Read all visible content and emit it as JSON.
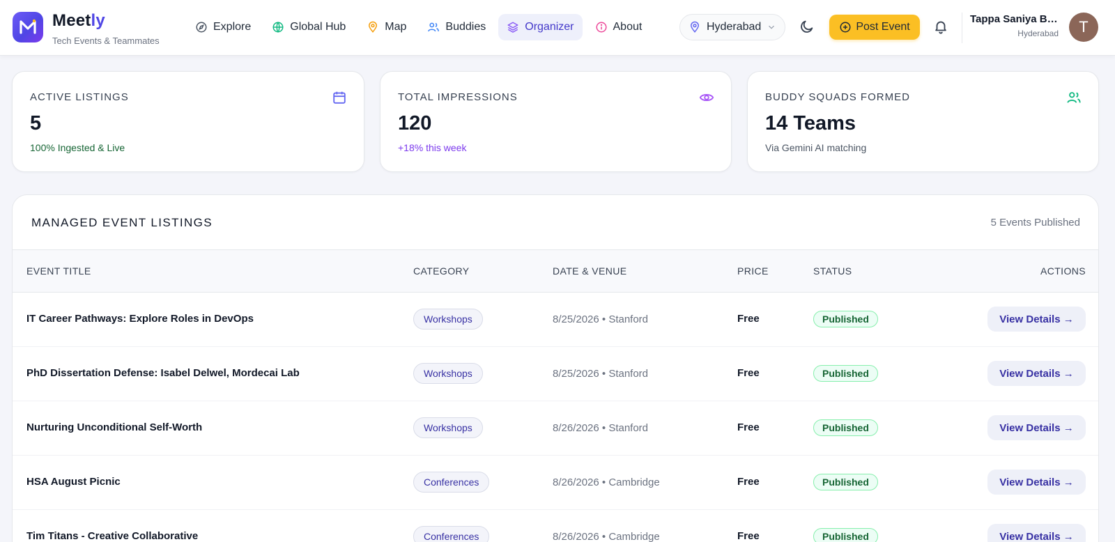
{
  "brand": {
    "name_main": "Meet",
    "name_accent": "ly",
    "tagline": "Tech Events & Teammates",
    "logo_letter": "M"
  },
  "nav": {
    "items": [
      {
        "label": "Explore",
        "icon": "compass-icon",
        "color": "#4b5563"
      },
      {
        "label": "Global Hub",
        "icon": "globe-icon",
        "color": "#10b981"
      },
      {
        "label": "Map",
        "icon": "map-pin-icon",
        "color": "#f59e0b"
      },
      {
        "label": "Buddies",
        "icon": "users-icon",
        "color": "#3b82f6"
      },
      {
        "label": "Organizer",
        "icon": "layers-icon",
        "color": "#8b5cf6",
        "active": true
      },
      {
        "label": "About",
        "icon": "info-icon",
        "color": "#ec4899"
      }
    ]
  },
  "location": {
    "city": "Hyderabad"
  },
  "header": {
    "post_event_label": "Post Event",
    "post_event_color": "#fbbf24"
  },
  "user": {
    "name": "Tappa Saniya Be...",
    "city": "Hyderabad",
    "avatar_initial": "T",
    "avatar_color": "#8b6658"
  },
  "stats": [
    {
      "label": "ACTIVE LISTINGS",
      "value": "5",
      "sub": "100% Ingested & Live",
      "icon": "calendar-icon",
      "icon_color": "#6366f1",
      "sub_color": "#166534"
    },
    {
      "label": "TOTAL IMPRESSIONS",
      "value": "120",
      "sub": "+18% this week",
      "icon": "eye-icon",
      "icon_color": "#a855f7",
      "sub_color": "#7c3aed"
    },
    {
      "label": "BUDDY SQUADS FORMED",
      "value": "14 Teams",
      "sub": "Via Gemini AI matching",
      "icon": "users-icon",
      "icon_color": "#10b981",
      "sub_color": "#4b5563"
    }
  ],
  "listings": {
    "title": "MANAGED EVENT LISTINGS",
    "count_label": "5 Events Published",
    "columns": [
      "EVENT TITLE",
      "CATEGORY",
      "DATE & VENUE",
      "PRICE",
      "STATUS",
      "ACTIONS"
    ],
    "rows": [
      {
        "title": "IT Career Pathways: Explore Roles in DevOps",
        "category": "Workshops",
        "date_venue": "8/25/2026 • Stanford",
        "price": "Free",
        "status": "Published",
        "action": "View Details →"
      },
      {
        "title": "PhD Dissertation Defense: Isabel Delwel, Mordecai Lab",
        "category": "Workshops",
        "date_venue": "8/25/2026 • Stanford",
        "price": "Free",
        "status": "Published",
        "action": "View Details →"
      },
      {
        "title": "Nurturing Unconditional Self-Worth",
        "category": "Workshops",
        "date_venue": "8/26/2026 • Stanford",
        "price": "Free",
        "status": "Published",
        "action": "View Details →"
      },
      {
        "title": "HSA August Picnic",
        "category": "Conferences",
        "date_venue": "8/26/2026 • Cambridge",
        "price": "Free",
        "status": "Published",
        "action": "View Details →"
      },
      {
        "title": "Tim Titans - Creative Collaborative",
        "category": "Conferences",
        "date_venue": "8/26/2026 • Cambridge",
        "price": "Free",
        "status": "Published",
        "action": "View Details →"
      }
    ]
  }
}
